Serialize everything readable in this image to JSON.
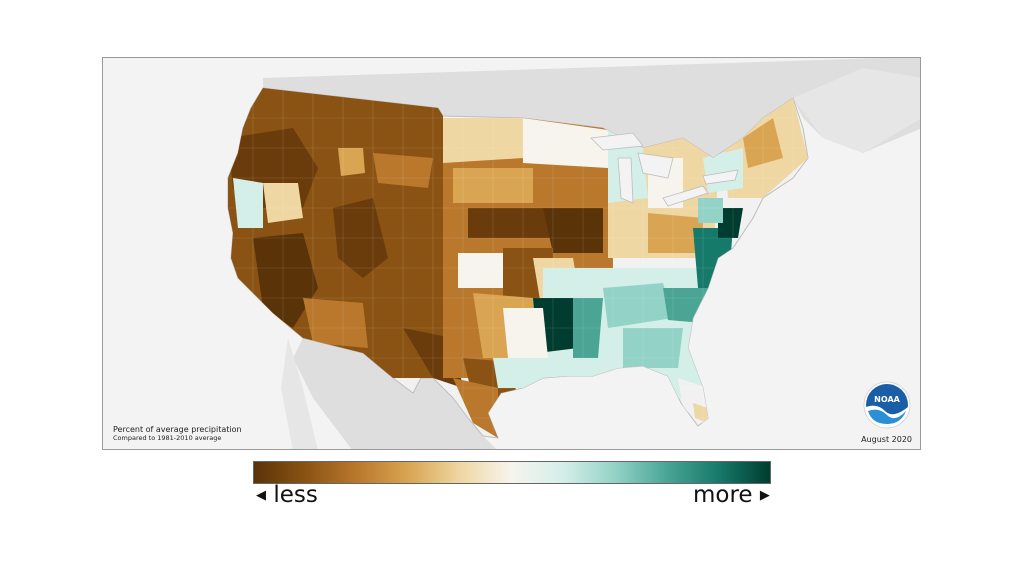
{
  "caption": {
    "title": "Percent of average precipitation",
    "subtitle": "Compared to 1981-2010 average"
  },
  "date_label": "August 2020",
  "logo_text": "NOAA",
  "legend": {
    "less_label": "less",
    "more_label": "more",
    "less_arrow": "◀",
    "more_arrow": "▶",
    "colors": [
      "#5a3309",
      "#8a5314",
      "#b9782c",
      "#d9a552",
      "#efd7a3",
      "#f7f4ee",
      "#d4eee8",
      "#93d2c6",
      "#4aa595",
      "#167a6a",
      "#003d30"
    ]
  },
  "colors": {
    "land_background": "#dedede",
    "water": "#f3f3f3",
    "no_change": "#f1f1f1",
    "noaa_blue": "#1a5ea8"
  }
}
